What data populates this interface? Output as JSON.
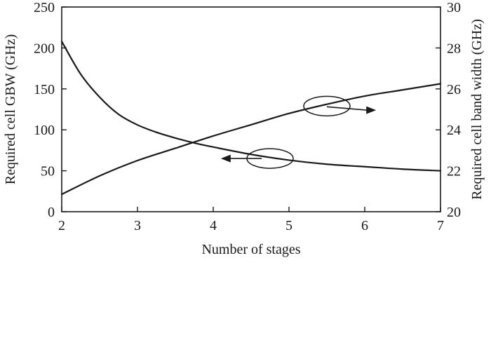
{
  "chart_data": {
    "type": "line",
    "xlabel": "Number of stages",
    "ylabel_left": "Required cell GBW (GHz)",
    "ylabel_right": "Required cell band width (GHz)",
    "xlim": [
      2,
      7
    ],
    "ylim_left": [
      0,
      250
    ],
    "ylim_right": [
      20,
      30
    ],
    "x_ticks": [
      "2",
      "3",
      "4",
      "5",
      "6",
      "7"
    ],
    "y_left_ticks": [
      "0",
      "50",
      "100",
      "150",
      "200",
      "250"
    ],
    "y_right_ticks": [
      "20",
      "22",
      "24",
      "26",
      "28",
      "30"
    ],
    "grid": false,
    "legend": "none",
    "series": [
      {
        "axis": "left",
        "x": [
          2.0,
          2.25,
          2.5,
          2.75,
          3.0,
          3.25,
          3.5,
          3.75,
          4.0,
          4.5,
          5.0,
          5.5,
          6.0,
          6.5,
          7.0
        ],
        "y": [
          208,
          168,
          140,
          119,
          106,
          97,
          90,
          84,
          79,
          70,
          63,
          58,
          55,
          52,
          50
        ]
      },
      {
        "axis": "right",
        "x": [
          2.0,
          2.5,
          3.0,
          3.5,
          4.0,
          4.5,
          5.0,
          5.5,
          6.0,
          6.5,
          7.0
        ],
        "y": [
          20.85,
          21.75,
          22.5,
          23.1,
          23.7,
          24.25,
          24.8,
          25.25,
          25.65,
          25.95,
          26.25
        ]
      }
    ],
    "annotations": [
      {
        "type": "ellipse-arrow",
        "direction": "left",
        "points_to": "left-axis-curve",
        "at": [
          4.75,
          65
        ],
        "arrow_to": [
          4.1,
          65
        ]
      },
      {
        "type": "ellipse-arrow",
        "direction": "right",
        "points_to": "right-axis-curve",
        "at": [
          5.5,
          129
        ],
        "arrow_to": [
          6.15,
          124
        ]
      }
    ]
  }
}
